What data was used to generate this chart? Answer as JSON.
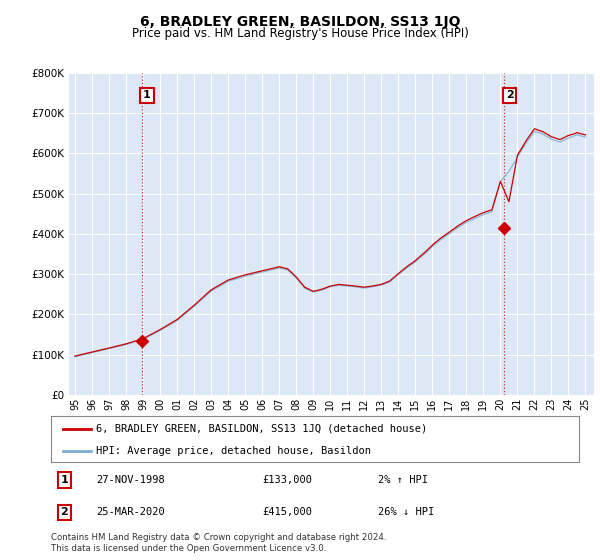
{
  "title": "6, BRADLEY GREEN, BASILDON, SS13 1JQ",
  "subtitle": "Price paid vs. HM Land Registry's House Price Index (HPI)",
  "legend_label_red": "6, BRADLEY GREEN, BASILDON, SS13 1JQ (detached house)",
  "legend_label_blue": "HPI: Average price, detached house, Basildon",
  "footnote": "Contains HM Land Registry data © Crown copyright and database right 2024.\nThis data is licensed under the Open Government Licence v3.0.",
  "annotation1_label": "1",
  "annotation1_date": "27-NOV-1998",
  "annotation1_price": "£133,000",
  "annotation1_hpi": "2% ↑ HPI",
  "annotation2_label": "2",
  "annotation2_date": "25-MAR-2020",
  "annotation2_price": "£415,000",
  "annotation2_hpi": "26% ↓ HPI",
  "ylim": [
    0,
    800000
  ],
  "yticks": [
    0,
    100000,
    200000,
    300000,
    400000,
    500000,
    600000,
    700000,
    800000
  ],
  "background_color": "#ffffff",
  "plot_bg_color": "#dce8f5",
  "grid_color": "#ffffff",
  "red_color": "#cc0000",
  "blue_color": "#7aadd4",
  "sale1_x": 1998.92,
  "sale1_y": 133000,
  "sale2_x": 2020.23,
  "sale2_y": 415000,
  "xtick_labels": [
    "95",
    "96",
    "97",
    "98",
    "99",
    "00",
    "01",
    "02",
    "03",
    "04",
    "05",
    "06",
    "07",
    "08",
    "09",
    "10",
    "11",
    "12",
    "13",
    "14",
    "15",
    "16",
    "17",
    "18",
    "19",
    "20",
    "21",
    "22",
    "23",
    "24",
    "25"
  ],
  "xtick_years": [
    1995,
    1996,
    1997,
    1998,
    1999,
    2000,
    2001,
    2002,
    2003,
    2004,
    2005,
    2006,
    2007,
    2008,
    2009,
    2010,
    2011,
    2012,
    2013,
    2014,
    2015,
    2016,
    2017,
    2018,
    2019,
    2020,
    2021,
    2022,
    2023,
    2024,
    2025
  ]
}
